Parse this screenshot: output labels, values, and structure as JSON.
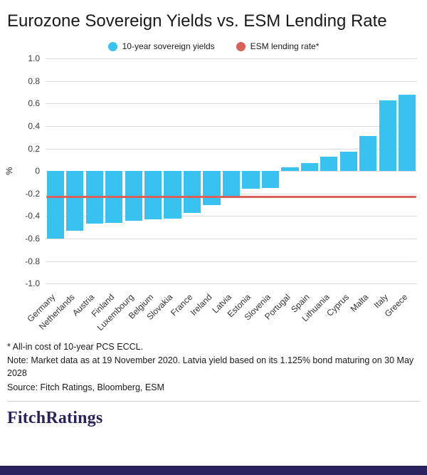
{
  "header": {
    "title": "Eurozone Sovereign Yields vs. ESM Lending Rate"
  },
  "chart_data": {
    "type": "bar",
    "title": "Eurozone Sovereign Yields vs. ESM Lending Rate",
    "xlabel": "",
    "ylabel": "%",
    "ylim": [
      -1.0,
      1.0
    ],
    "grid": true,
    "legend_position": "top",
    "y_ticks": [
      "1.0",
      "0.8",
      "0.6",
      "0.4",
      "0.2",
      "0",
      "-0.2",
      "-0.4",
      "-0.6",
      "-0.8",
      "-1.0"
    ],
    "categories": [
      "Germany",
      "Netherlands",
      "Austria",
      "Finland",
      "Luxembourg",
      "Belgium",
      "Slovakia",
      "France",
      "Ireland",
      "Latvia",
      "Estonia",
      "Slovenia",
      "Portugal",
      "Spain",
      "Lithuania",
      "Cyprus",
      "Malta",
      "Italy",
      "Greece"
    ],
    "values": [
      -0.6,
      -0.53,
      -0.47,
      -0.46,
      -0.44,
      -0.43,
      -0.42,
      -0.37,
      -0.3,
      -0.24,
      -0.16,
      -0.15,
      0.03,
      0.07,
      0.13,
      0.17,
      0.31,
      0.63,
      0.68
    ],
    "esm_lending_rate": -0.23,
    "bar_color": "#38c2f0",
    "line_color": "#d9605b",
    "legend": [
      {
        "label": "10-year sovereign yields",
        "color": "#38c2f0"
      },
      {
        "label": "ESM lending rate*",
        "color": "#d9605b"
      }
    ]
  },
  "footnotes": {
    "line1": "* All-in cost of 10-year PCS ECCL.",
    "line2": "Note: Market data as at 19 November 2020.  Latvia yield based on its 1.125% bond maturing on 30 May 2028",
    "line3": "Source: Fitch Ratings, Bloomberg, ESM"
  },
  "footer": {
    "logo": "FitchRatings"
  }
}
